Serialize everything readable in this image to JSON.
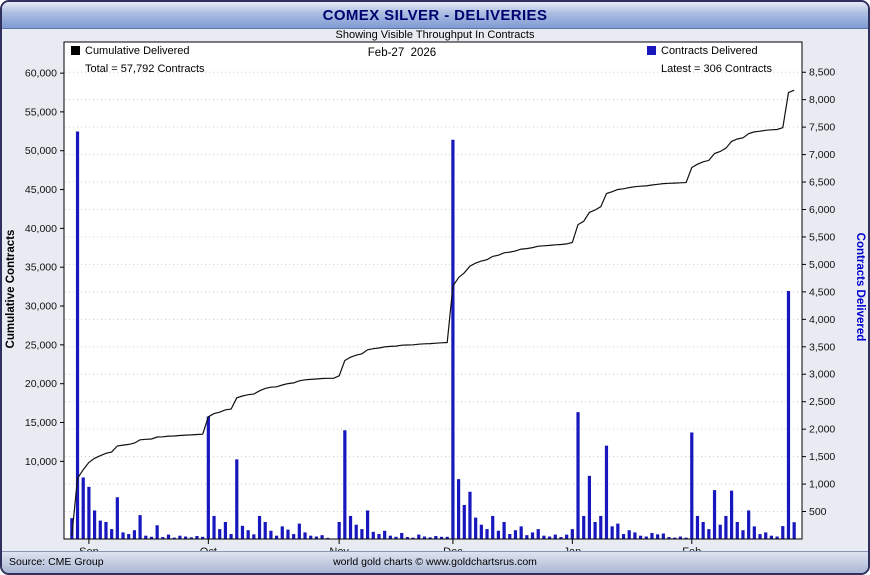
{
  "header": {
    "title": "COMEX SILVER - DELIVERIES",
    "subtitle": "Showing Visible Throughput In Contracts",
    "date_label": "Feb-27  2026"
  },
  "legend": {
    "left": {
      "label": "Cumulative Delivered",
      "total_label": "Total = 57,792 Contracts",
      "color": "#000000"
    },
    "right": {
      "label": "Contracts Delivered",
      "latest_label": "Latest = 306 Contracts",
      "color": "#1717bd"
    }
  },
  "footer": {
    "source": "Source: CME Group",
    "credit": "world gold charts © www.goldchartsrus.com"
  },
  "colors": {
    "bar_blue": "#1717bd",
    "line_black": "#111111",
    "title_navy": "#00006e",
    "right_axis_blue": "#0000cc",
    "window_bg": "#e9ebf3",
    "plot_bg": "#ffffff",
    "gridline": "#c8cdd8"
  },
  "chart_data": {
    "type": "bar",
    "combo": "daily bars (right axis) + cumulative line (left axis)",
    "title": "COMEX SILVER - DELIVERIES",
    "subtitle": "Showing Visible Throughput In Contracts",
    "as_of": "Feb-27 2026",
    "total_cumulative": 57792,
    "latest_delivered": 306,
    "grid": "dotted horizontal gridlines at right-axis ticks",
    "legend_position": "top-left and top-right inside plot",
    "left_axis": {
      "label": "Cumulative Contracts",
      "min": 0,
      "max": 64000,
      "tick_min": 10000,
      "tick_max": 60000,
      "tick_step": 5000
    },
    "right_axis": {
      "label": "Contracts Delivered",
      "min": 0,
      "max": 9050,
      "tick_min": 500,
      "tick_max": 8500,
      "tick_step": 500
    },
    "x_axis": {
      "month_labels": [
        "Sep",
        "Oct",
        "Nov",
        "Dec",
        "Jan",
        "Feb"
      ],
      "month_tick_indices": [
        3,
        24,
        47,
        67,
        88,
        109
      ],
      "n_days": 128
    },
    "series": [
      {
        "name": "Contracts Delivered",
        "type": "bar",
        "axis": "right",
        "color": "#1717bd",
        "values": [
          380,
          7420,
          1120,
          950,
          520,
          335,
          310,
          180,
          760,
          120,
          90,
          160,
          435,
          60,
          40,
          250,
          35,
          80,
          25,
          60,
          45,
          30,
          55,
          40,
          2230,
          420,
          180,
          310,
          90,
          1450,
          240,
          160,
          85,
          420,
          310,
          150,
          60,
          230,
          170,
          90,
          280,
          120,
          60,
          45,
          70,
          20,
          10,
          310,
          1980,
          420,
          260,
          180,
          520,
          130,
          90,
          150,
          60,
          40,
          110,
          35,
          25,
          80,
          45,
          30,
          55,
          40,
          40,
          7270,
          1090,
          620,
          860,
          390,
          260,
          180,
          420,
          150,
          310,
          90,
          160,
          230,
          70,
          120,
          180,
          60,
          45,
          80,
          35,
          80,
          180,
          2310,
          420,
          1150,
          310,
          420,
          1700,
          230,
          280,
          90,
          160,
          120,
          60,
          45,
          110,
          85,
          100,
          35,
          25,
          45,
          25,
          1940,
          420,
          310,
          180,
          890,
          260,
          420,
          880,
          310,
          160,
          520,
          230,
          90,
          120,
          60,
          45,
          235,
          4516,
          306
        ]
      },
      {
        "name": "Cumulative Delivered",
        "type": "line",
        "axis": "left",
        "color": "#111111",
        "derivation": "running_sum_of_bar_values",
        "checkpoints": {
          "end_sep": 13500,
          "end_oct": 20700,
          "end_nov": 25300,
          "end_dec": 38000,
          "end_jan": 45900,
          "final": 57792
        }
      }
    ]
  }
}
